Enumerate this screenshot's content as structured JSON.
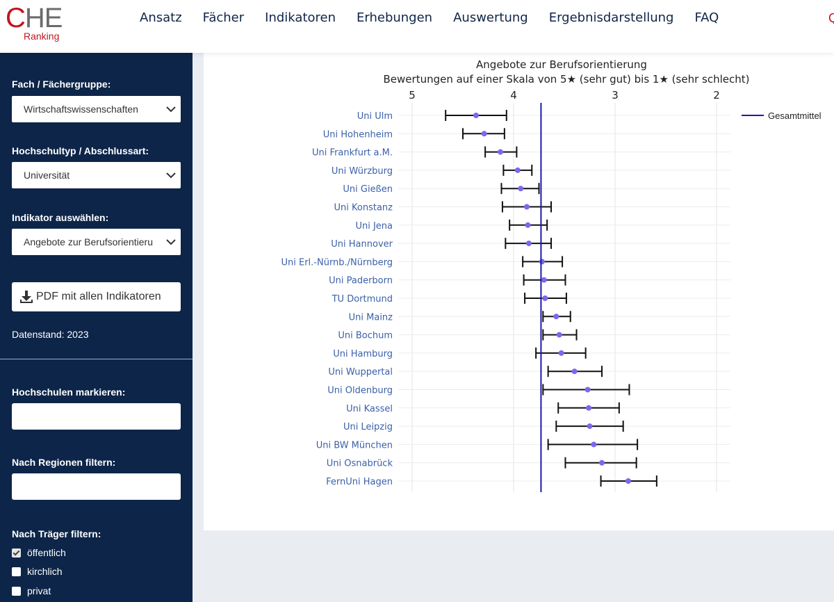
{
  "logo": {
    "mark_c": "C",
    "mark_he": "HE",
    "sub": "Ranking"
  },
  "nav": {
    "items": [
      "Ansatz",
      "Fächer",
      "Indikatoren",
      "Erhebungen",
      "Auswertung",
      "Ergebnisdarstellung",
      "FAQ"
    ],
    "cut_glyph": "Q"
  },
  "sidebar": {
    "fach_label": "Fach / Fächergruppe:",
    "fach_value": "Wirtschaftswissenschaften",
    "typ_label": "Hochschultyp / Abschlussart:",
    "typ_value": "Universität",
    "indikator_label": "Indikator auswählen:",
    "indikator_value": "Angebote zur Berufsorientieru",
    "pdf_button": "PDF mit allen Indikatoren",
    "datenstand": "Datenstand: 2023",
    "markieren_label": "Hochschulen markieren:",
    "regionen_label": "Nach Regionen filtern:",
    "traeger_label": "Nach Träger filtern:",
    "traeger_options": [
      {
        "label": "öffentlich",
        "checked": true
      },
      {
        "label": "kirchlich",
        "checked": false
      },
      {
        "label": "privat",
        "checked": false
      }
    ]
  },
  "colors": {
    "sidebar_bg": "#0d2549",
    "link": "#3a5fa8",
    "point": "#7b68ee",
    "mean_line": "#1a1aaa",
    "brand_red": "#c0161f"
  },
  "chart_data": {
    "type": "scatter",
    "title": "Angebote zur Berufsorientierung",
    "subtitle": "Bewertungen auf einer Skala von 5★ (sehr gut) bis 1★ (sehr schlecht)",
    "x_axis_reversed": true,
    "xlim": [
      5.1,
      1.9
    ],
    "xticks": [
      5,
      4,
      3,
      2
    ],
    "mean": {
      "name": "Gesamtmittel",
      "value": 3.73
    },
    "legend_position": "top-right",
    "universities": [
      {
        "name": "Uni Ulm",
        "value": 4.37,
        "low": 4.07,
        "high": 4.67
      },
      {
        "name": "Uni Hohenheim",
        "value": 4.29,
        "low": 4.09,
        "high": 4.5
      },
      {
        "name": "Uni Frankfurt a.M.",
        "value": 4.13,
        "low": 3.97,
        "high": 4.28
      },
      {
        "name": "Uni Würzburg",
        "value": 3.96,
        "low": 3.82,
        "high": 4.1
      },
      {
        "name": "Uni Gießen",
        "value": 3.93,
        "low": 3.75,
        "high": 4.12
      },
      {
        "name": "Uni Konstanz",
        "value": 3.87,
        "low": 3.63,
        "high": 4.11
      },
      {
        "name": "Uni Jena",
        "value": 3.86,
        "low": 3.67,
        "high": 4.04
      },
      {
        "name": "Uni Hannover",
        "value": 3.85,
        "low": 3.63,
        "high": 4.08
      },
      {
        "name": "Uni Erl.-Nürnb./Nürnberg",
        "value": 3.72,
        "low": 3.52,
        "high": 3.91
      },
      {
        "name": "Uni Paderborn",
        "value": 3.7,
        "low": 3.49,
        "high": 3.9
      },
      {
        "name": "TU Dortmund",
        "value": 3.69,
        "low": 3.48,
        "high": 3.89
      },
      {
        "name": "Uni Mainz",
        "value": 3.58,
        "low": 3.44,
        "high": 3.71
      },
      {
        "name": "Uni Bochum",
        "value": 3.55,
        "low": 3.38,
        "high": 3.71
      },
      {
        "name": "Uni Hamburg",
        "value": 3.53,
        "low": 3.29,
        "high": 3.78
      },
      {
        "name": "Uni Wuppertal",
        "value": 3.4,
        "low": 3.13,
        "high": 3.66
      },
      {
        "name": "Uni Oldenburg",
        "value": 3.27,
        "low": 2.86,
        "high": 3.71
      },
      {
        "name": "Uni Kassel",
        "value": 3.26,
        "low": 2.96,
        "high": 3.56
      },
      {
        "name": "Uni Leipzig",
        "value": 3.25,
        "low": 2.92,
        "high": 3.58
      },
      {
        "name": "Uni BW München",
        "value": 3.21,
        "low": 2.78,
        "high": 3.66
      },
      {
        "name": "Uni Osnabrück",
        "value": 3.13,
        "low": 2.79,
        "high": 3.49
      },
      {
        "name": "FernUni Hagen",
        "value": 2.87,
        "low": 2.59,
        "high": 3.14
      }
    ]
  }
}
